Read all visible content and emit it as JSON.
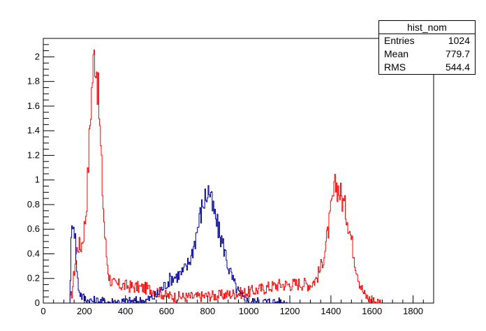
{
  "chart_data": {
    "type": "histogram",
    "title": "",
    "xlabel": "",
    "ylabel": "",
    "xlim": [
      0,
      1900
    ],
    "ylim": [
      0,
      2.15
    ],
    "grid": false,
    "x_ticks": [
      "0",
      "200",
      "400",
      "600",
      "800",
      "1000",
      "1200",
      "1400",
      "1600",
      "1800"
    ],
    "y_ticks": [
      "0",
      "0.2",
      "0.4",
      "0.6",
      "0.8",
      "1",
      "1.2",
      "1.4",
      "1.6",
      "1.8",
      "2"
    ],
    "legend": "top-right",
    "stats": {
      "name": "hist_nom",
      "rows": [
        {
          "label": "Entries",
          "value": "1024"
        },
        {
          "label": "Mean",
          "value": "779.7"
        },
        {
          "label": "RMS",
          "value": "544.4"
        }
      ]
    },
    "series": [
      {
        "color": "#ff0000",
        "points": [
          [
            130,
            0.02
          ],
          [
            140,
            0.08
          ],
          [
            150,
            0.24
          ],
          [
            160,
            0.4
          ],
          [
            170,
            0.48
          ],
          [
            180,
            0.45
          ],
          [
            190,
            0.5
          ],
          [
            200,
            0.62
          ],
          [
            210,
            0.78
          ],
          [
            220,
            1.15
          ],
          [
            230,
            1.55
          ],
          [
            240,
            1.85
          ],
          [
            250,
            2.05
          ],
          [
            260,
            1.92
          ],
          [
            270,
            1.62
          ],
          [
            280,
            1.25
          ],
          [
            290,
            0.85
          ],
          [
            300,
            0.55
          ],
          [
            310,
            0.35
          ],
          [
            320,
            0.22
          ],
          [
            330,
            0.18
          ],
          [
            340,
            0.16
          ],
          [
            350,
            0.15
          ],
          [
            400,
            0.14
          ],
          [
            450,
            0.13
          ],
          [
            500,
            0.12
          ],
          [
            550,
            0.1
          ],
          [
            600,
            0.06
          ],
          [
            650,
            0.05
          ],
          [
            700,
            0.05
          ],
          [
            750,
            0.05
          ],
          [
            800,
            0.06
          ],
          [
            850,
            0.06
          ],
          [
            900,
            0.07
          ],
          [
            950,
            0.08
          ],
          [
            1000,
            0.09
          ],
          [
            1050,
            0.11
          ],
          [
            1100,
            0.13
          ],
          [
            1150,
            0.15
          ],
          [
            1200,
            0.15
          ],
          [
            1250,
            0.16
          ],
          [
            1300,
            0.15
          ],
          [
            1330,
            0.2
          ],
          [
            1350,
            0.28
          ],
          [
            1370,
            0.42
          ],
          [
            1390,
            0.62
          ],
          [
            1410,
            0.85
          ],
          [
            1425,
            0.97
          ],
          [
            1440,
            0.92
          ],
          [
            1460,
            0.82
          ],
          [
            1480,
            0.7
          ],
          [
            1500,
            0.52
          ],
          [
            1520,
            0.32
          ],
          [
            1540,
            0.17
          ],
          [
            1560,
            0.08
          ],
          [
            1580,
            0.04
          ],
          [
            1600,
            0.02
          ],
          [
            1640,
            0.01
          ]
        ]
      },
      {
        "color": "#000099",
        "points": [
          [
            130,
            0.08
          ],
          [
            135,
            0.45
          ],
          [
            145,
            0.72
          ],
          [
            155,
            0.55
          ],
          [
            165,
            0.22
          ],
          [
            175,
            0.1
          ],
          [
            190,
            0.05
          ],
          [
            220,
            0.02
          ],
          [
            300,
            0.01
          ],
          [
            400,
            0.01
          ],
          [
            500,
            0.02
          ],
          [
            550,
            0.06
          ],
          [
            580,
            0.12
          ],
          [
            600,
            0.16
          ],
          [
            620,
            0.2
          ],
          [
            650,
            0.22
          ],
          [
            680,
            0.25
          ],
          [
            700,
            0.3
          ],
          [
            720,
            0.38
          ],
          [
            740,
            0.52
          ],
          [
            760,
            0.68
          ],
          [
            780,
            0.82
          ],
          [
            800,
            0.9
          ],
          [
            810,
            0.92
          ],
          [
            820,
            0.8
          ],
          [
            840,
            0.68
          ],
          [
            860,
            0.55
          ],
          [
            880,
            0.45
          ],
          [
            900,
            0.3
          ],
          [
            920,
            0.2
          ],
          [
            940,
            0.12
          ],
          [
            960,
            0.06
          ],
          [
            980,
            0.03
          ],
          [
            1000,
            0.01
          ],
          [
            1100,
            0.01
          ],
          [
            1200,
            0.0
          ]
        ]
      }
    ]
  }
}
